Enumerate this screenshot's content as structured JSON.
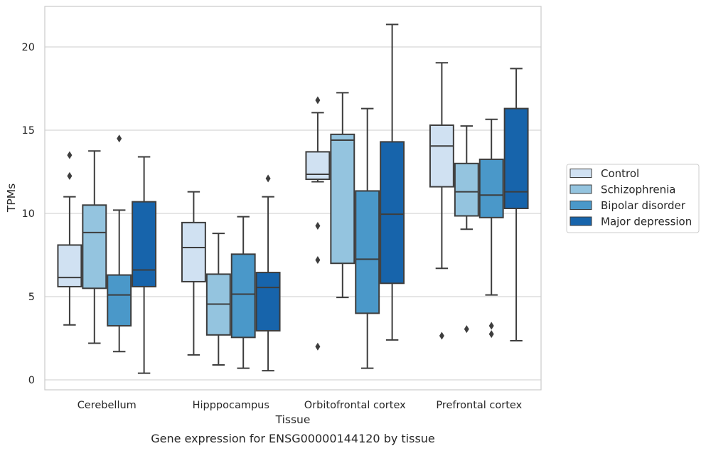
{
  "chart_data": {
    "type": "box",
    "title": "",
    "caption": "Gene expression for ENSG00000144120 by tissue",
    "xlabel": "Tissue",
    "ylabel": "TPMs",
    "ylim": [
      -0.5,
      22.5
    ],
    "yticks": [
      0,
      5,
      10,
      15,
      20
    ],
    "grid": "horizontal",
    "legend_position": "right",
    "categories": [
      "Cerebellum",
      "Hipppocampus",
      "Orbitofrontal cortex",
      "Prefrontal cortex"
    ],
    "series": [
      {
        "name": "Control",
        "color": "#d0e1f2",
        "boxes": [
          {
            "whislo": 3.3,
            "q1": 5.6,
            "med": 6.15,
            "q3": 8.1,
            "whishi": 11.0,
            "fliers": [
              12.25,
              13.5
            ]
          },
          {
            "whislo": 1.5,
            "q1": 5.9,
            "med": 7.95,
            "q3": 9.45,
            "whishi": 11.3,
            "fliers": []
          },
          {
            "whislo": 11.9,
            "q1": 12.05,
            "med": 12.35,
            "q3": 13.7,
            "whishi": 16.05,
            "fliers": [
              16.8,
              9.25,
              7.2,
              2.0
            ]
          },
          {
            "whislo": 6.7,
            "q1": 11.6,
            "med": 14.05,
            "q3": 15.3,
            "whishi": 19.05,
            "fliers": [
              2.65
            ]
          }
        ]
      },
      {
        "name": "Schizophrenia",
        "color": "#94c4df",
        "boxes": [
          {
            "whislo": 2.2,
            "q1": 5.5,
            "med": 8.85,
            "q3": 10.5,
            "whishi": 13.75,
            "fliers": []
          },
          {
            "whislo": 0.9,
            "q1": 2.7,
            "med": 4.55,
            "q3": 6.35,
            "whishi": 8.8,
            "fliers": []
          },
          {
            "whislo": 4.95,
            "q1": 7.0,
            "med": 14.4,
            "q3": 14.75,
            "whishi": 17.25,
            "fliers": []
          },
          {
            "whislo": 9.05,
            "q1": 9.85,
            "med": 11.3,
            "q3": 13.0,
            "whishi": 15.25,
            "fliers": [
              3.05
            ]
          }
        ]
      },
      {
        "name": "Bipolar disorder",
        "color": "#4a98c9",
        "boxes": [
          {
            "whislo": 1.7,
            "q1": 3.25,
            "med": 5.1,
            "q3": 6.3,
            "whishi": 10.2,
            "fliers": [
              14.5
            ]
          },
          {
            "whislo": 0.7,
            "q1": 2.55,
            "med": 5.15,
            "q3": 7.55,
            "whishi": 9.8,
            "fliers": []
          },
          {
            "whislo": 0.7,
            "q1": 4.0,
            "med": 7.25,
            "q3": 11.35,
            "whishi": 16.3,
            "fliers": []
          },
          {
            "whislo": 5.1,
            "q1": 9.75,
            "med": 11.1,
            "q3": 13.25,
            "whishi": 15.65,
            "fliers": [
              3.25,
              2.75
            ]
          }
        ]
      },
      {
        "name": "Major depression",
        "color": "#1764ab",
        "boxes": [
          {
            "whislo": 0.4,
            "q1": 5.6,
            "med": 6.6,
            "q3": 10.7,
            "whishi": 13.4,
            "fliers": []
          },
          {
            "whislo": 0.55,
            "q1": 2.95,
            "med": 5.55,
            "q3": 6.45,
            "whishi": 11.0,
            "fliers": [
              12.1
            ]
          },
          {
            "whislo": 2.4,
            "q1": 5.8,
            "med": 9.95,
            "q3": 14.3,
            "whishi": 21.35,
            "fliers": []
          },
          {
            "whislo": 2.35,
            "q1": 10.3,
            "med": 11.3,
            "q3": 16.3,
            "whishi": 18.7,
            "fliers": []
          }
        ]
      }
    ]
  }
}
